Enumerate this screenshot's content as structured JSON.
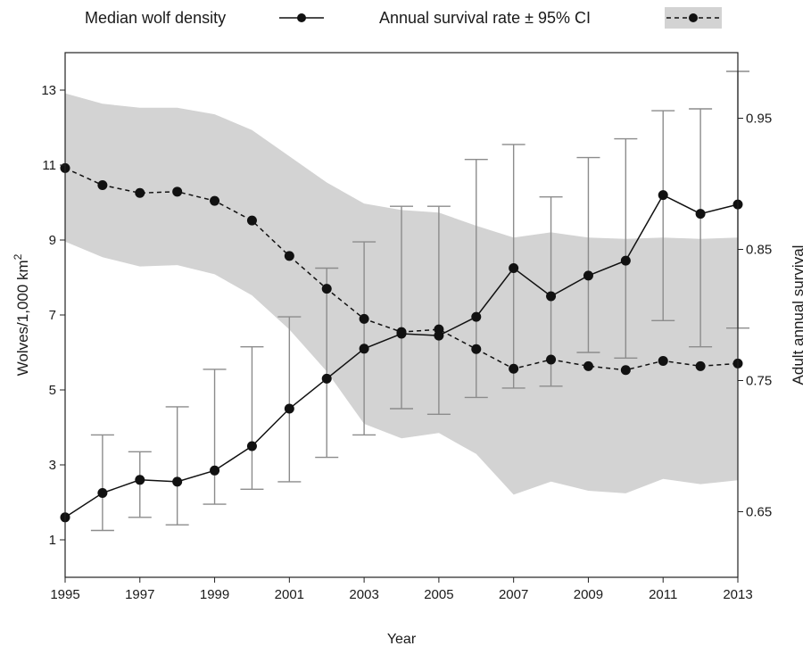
{
  "chart_data": {
    "type": "line",
    "xlabel": "Year",
    "ylabel": "Wolves/1,000 km",
    "ylabel_sup": "2",
    "y2label": "Adult annual survival",
    "x": [
      1995,
      1996,
      1997,
      1998,
      1999,
      2000,
      2001,
      2002,
      2003,
      2004,
      2005,
      2006,
      2007,
      2008,
      2009,
      2010,
      2011,
      2012,
      2013
    ],
    "xlim": [
      1995,
      2013
    ],
    "xticks": [
      1995,
      1997,
      1999,
      2001,
      2003,
      2005,
      2007,
      2009,
      2011,
      2013
    ],
    "ylim": [
      0,
      14
    ],
    "yticks": [
      1,
      3,
      5,
      7,
      9,
      11,
      13
    ],
    "y2lim": [
      0.6,
      1.0
    ],
    "y2ticks": [
      0.65,
      0.75,
      0.85,
      0.95
    ],
    "y2tick_labels": [
      "0.65",
      "0.75",
      "0.85",
      "0.95"
    ],
    "grid": false,
    "legend_position": "top",
    "series": [
      {
        "name": "Median wolf density",
        "axis": "left",
        "style": "solid",
        "values": [
          1.6,
          2.25,
          2.6,
          2.55,
          2.85,
          3.5,
          4.5,
          5.3,
          6.1,
          6.5,
          6.45,
          6.95,
          8.25,
          7.5,
          8.05,
          8.45,
          10.2,
          9.7,
          9.95
        ],
        "error_low": [
          1.6,
          1.25,
          1.6,
          1.4,
          1.95,
          2.35,
          2.55,
          3.2,
          3.8,
          4.5,
          4.35,
          4.8,
          5.05,
          5.1,
          6.0,
          5.85,
          6.85,
          6.15,
          6.65
        ],
        "error_high": [
          1.6,
          3.8,
          3.35,
          4.55,
          5.55,
          6.15,
          6.95,
          8.25,
          8.95,
          9.9,
          9.9,
          11.15,
          11.55,
          10.15,
          11.2,
          11.7,
          12.45,
          12.5,
          13.5
        ]
      },
      {
        "name": "Annual survival rate ± 95% CI",
        "axis": "right",
        "style": "dashed",
        "values": [
          0.912,
          0.899,
          0.893,
          0.894,
          0.887,
          0.872,
          0.845,
          0.82,
          0.797,
          0.787,
          0.789,
          0.774,
          0.759,
          0.766,
          0.761,
          0.758,
          0.765,
          0.761,
          0.763
        ],
        "ci_low": [
          0.856,
          0.844,
          0.837,
          0.838,
          0.831,
          0.815,
          0.789,
          0.757,
          0.717,
          0.706,
          0.71,
          0.694,
          0.663,
          0.673,
          0.666,
          0.664,
          0.675,
          0.671,
          0.674
        ],
        "ci_high": [
          0.969,
          0.961,
          0.958,
          0.958,
          0.953,
          0.941,
          0.921,
          0.901,
          0.885,
          0.88,
          0.878,
          0.868,
          0.859,
          0.863,
          0.859,
          0.858,
          0.859,
          0.858,
          0.859
        ]
      }
    ]
  },
  "colors": {
    "ci_band": "#d3d3d3",
    "error_bar": "#8c8c8c",
    "line": "#111111",
    "axis": "#222222"
  }
}
